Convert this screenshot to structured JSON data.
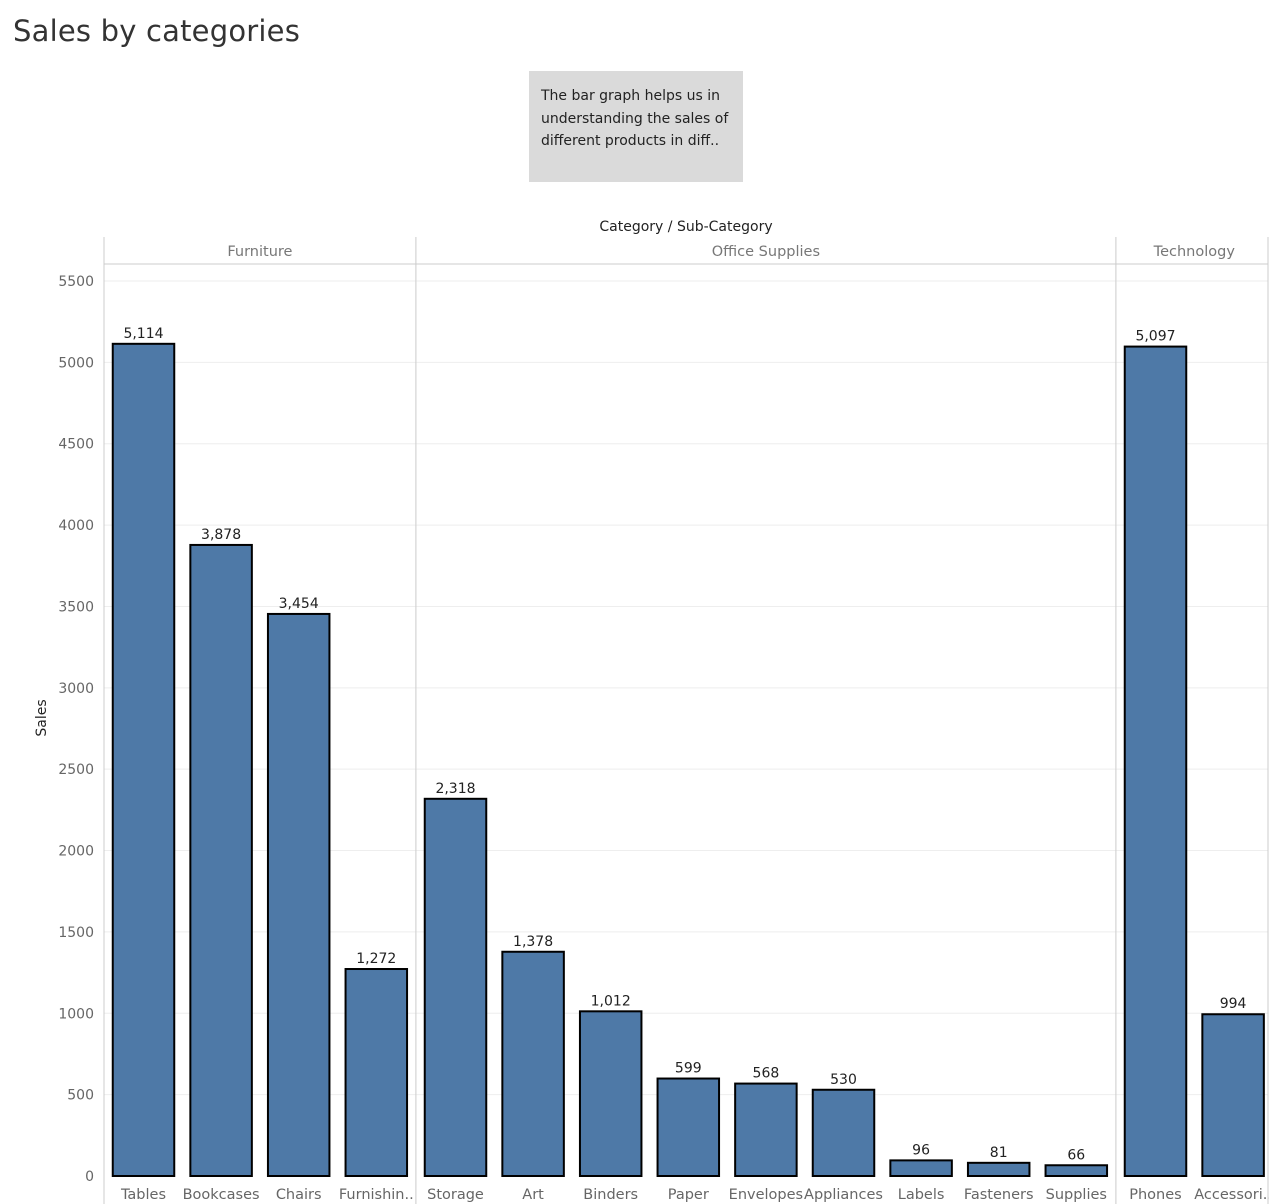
{
  "page": {
    "title": "Sales by categories",
    "note": "The bar graph helps us in understanding the sales of different products in diff.."
  },
  "chart_data": {
    "type": "bar",
    "xlabel": "Category / Sub-Category",
    "ylabel": "Sales",
    "ylim": [
      0,
      5500
    ],
    "yticks": [
      0,
      500,
      1000,
      1500,
      2000,
      2500,
      3000,
      3500,
      4000,
      4500,
      5000,
      5500
    ],
    "grid": true,
    "bar_color": "#4e79a7",
    "groups": [
      {
        "name": "Furniture",
        "categories": [
          "Tables",
          "Bookcases",
          "Chairs",
          "Furnishin.."
        ],
        "values": [
          5114,
          3878,
          3454,
          1272
        ],
        "labels": [
          "5,114",
          "3,878",
          "3,454",
          "1,272"
        ]
      },
      {
        "name": "Office Supplies",
        "categories": [
          "Storage",
          "Art",
          "Binders",
          "Paper",
          "Envelopes",
          "Appliances",
          "Labels",
          "Fasteners",
          "Supplies"
        ],
        "values": [
          2318,
          1378,
          1012,
          599,
          568,
          530,
          96,
          81,
          66
        ],
        "labels": [
          "2,318",
          "1,378",
          "1,012",
          "599",
          "568",
          "530",
          "96",
          "81",
          "66"
        ]
      },
      {
        "name": "Technology",
        "categories": [
          "Phones",
          "Accessori.."
        ],
        "values": [
          5097,
          994
        ],
        "labels": [
          "5,097",
          "994"
        ]
      }
    ]
  }
}
